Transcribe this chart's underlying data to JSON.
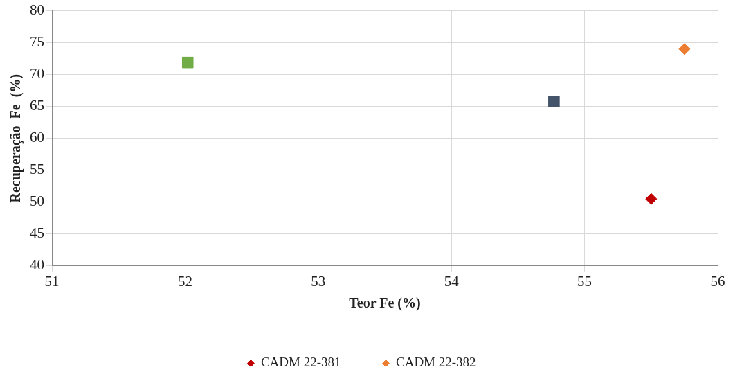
{
  "chart_data": {
    "type": "scatter",
    "xlabel": "Teor Fe (%)",
    "ylabel": "Recuperação  Fe  (%)",
    "xlim": [
      51,
      56
    ],
    "xticks": [
      51,
      52,
      53,
      54,
      55,
      56
    ],
    "ylim": [
      40,
      80
    ],
    "yticks": [
      40,
      45,
      50,
      55,
      60,
      65,
      70,
      75,
      80
    ],
    "grid": true,
    "legend": "bottom",
    "series": [
      {
        "color": "#44546a",
        "marker": "square",
        "x": [
          54.77
        ],
        "values": [
          65.8
        ]
      },
      {
        "color": "#70ad47",
        "marker": "square",
        "x": [
          52.02
        ],
        "values": [
          71.9
        ]
      },
      {
        "name": "CADM 22-381",
        "color": "#c00000",
        "marker": "diamond",
        "x": [
          55.5
        ],
        "values": [
          50.5
        ]
      },
      {
        "name": "CADM 22-382",
        "color": "#ed7d31",
        "marker": "diamond",
        "x": [
          55.75
        ],
        "values": [
          74
        ]
      }
    ]
  }
}
